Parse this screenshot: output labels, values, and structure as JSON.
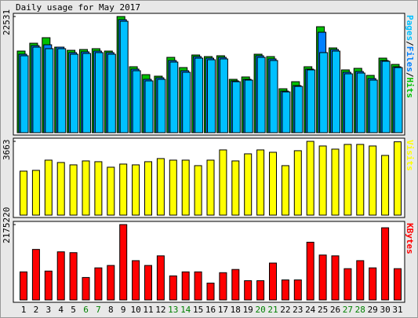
{
  "title": "Daily usage for May 2017",
  "legend_separator": "/",
  "chart_data": [
    {
      "type": "bar",
      "series": [
        {
          "name": "Hits",
          "color": "#00c000",
          "values": [
            15830,
            17350,
            18420,
            16590,
            15980,
            16130,
            16290,
            15830,
            22531,
            12790,
            11260,
            10960,
            14610,
            12630,
            15070,
            14760,
            14920,
            10350,
            10810,
            15220,
            14760,
            8520,
            9890,
            12790,
            20550,
            16440,
            12180,
            12480,
            11110,
            14460,
            13240
          ]
        },
        {
          "name": "Files",
          "color": "#0080ff",
          "values": [
            15220,
            16890,
            17050,
            16590,
            15530,
            15680,
            15830,
            15530,
            21920,
            12330,
            10350,
            10650,
            14000,
            12020,
            14760,
            14460,
            14610,
            10050,
            10350,
            14920,
            14310,
            8070,
            9130,
            12330,
            19480,
            16130,
            11720,
            11870,
            10500,
            14000,
            12780
          ]
        },
        {
          "name": "Pages",
          "color": "#00c0ff",
          "values": [
            14920,
            16590,
            16290,
            16290,
            15220,
            15370,
            15530,
            15220,
            21610,
            12020,
            10050,
            10350,
            13700,
            11720,
            14460,
            14150,
            14310,
            9890,
            10200,
            14610,
            14000,
            7910,
            8980,
            12180,
            15530,
            15830,
            11420,
            11570,
            10200,
            13850,
            12630
          ]
        }
      ],
      "ylim": [
        0,
        22531
      ],
      "yticks": [
        22531
      ]
    },
    {
      "type": "bar",
      "series": [
        {
          "name": "Visits",
          "color": "#ffff00",
          "values": [
            2184,
            2223,
            2730,
            2613,
            2496,
            2691,
            2652,
            2379,
            2535,
            2496,
            2652,
            2808,
            2730,
            2730,
            2457,
            2730,
            3237,
            2691,
            3042,
            3237,
            3120,
            2457,
            3198,
            3663,
            3432,
            3276,
            3510,
            3510,
            3432,
            2964,
            3640
          ]
        }
      ],
      "ylim": [
        0,
        3663
      ],
      "yticks": [
        3663
      ]
    },
    {
      "type": "bar",
      "categories": [
        "1",
        "2",
        "3",
        "4",
        "5",
        "6",
        "7",
        "8",
        "9",
        "10",
        "11",
        "12",
        "13",
        "14",
        "15",
        "16",
        "17",
        "18",
        "19",
        "20",
        "21",
        "22",
        "23",
        "24",
        "25",
        "26",
        "27",
        "28",
        "29",
        "30",
        "31"
      ],
      "category_colors": [
        "#000000",
        "#000000",
        "#000000",
        "#000000",
        "#000000",
        "#008000",
        "#008000",
        "#000000",
        "#000000",
        "#000000",
        "#000000",
        "#000000",
        "#008000",
        "#008000",
        "#000000",
        "#000000",
        "#000000",
        "#000000",
        "#000000",
        "#008000",
        "#008000",
        "#000000",
        "#000000",
        "#000000",
        "#000000",
        "#000000",
        "#008000",
        "#008000",
        "#000000",
        "#000000",
        "#000000"
      ],
      "series": [
        {
          "name": "KBytes",
          "color": "#ff0000",
          "values": [
            809935,
            1457883,
            833076,
            1388460,
            1365319,
            647948,
            925640,
            995063,
            2175220,
            1133909,
            995063,
            1272755,
            694230,
            809935,
            809935,
            485961,
            786794,
            879358,
            555384,
            555384,
            1064486,
            578525,
            578525,
            1666152,
            1295896,
            1272755,
            902499,
            1133909,
            925640,
            2082690,
            902499
          ]
        }
      ],
      "ylim": [
        0,
        2175220
      ],
      "yticks": [
        2175220
      ]
    }
  ]
}
